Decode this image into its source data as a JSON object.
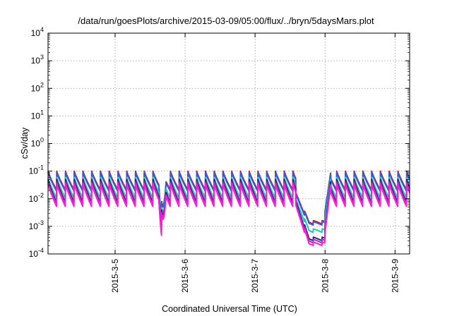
{
  "chart_data": {
    "type": "line",
    "title": "/data/run/goesPlots/archive/2015-03-09/05:00/flux/../bryn/5daysMars.plot",
    "xlabel": "Coordinated Universal Time (UTC)",
    "ylabel": "cSv/day",
    "y_scale": "log",
    "ylim": [
      0.0001,
      10000
    ],
    "xlim": [
      "2015-03-04 01:00",
      "2015-03-09 05:00"
    ],
    "grid": true,
    "y_ticks": [
      {
        "value": 0.0001,
        "mantissa": "10",
        "exponent": "-4"
      },
      {
        "value": 0.001,
        "mantissa": "10",
        "exponent": "-3"
      },
      {
        "value": 0.01,
        "mantissa": "10",
        "exponent": "-2"
      },
      {
        "value": 0.1,
        "mantissa": "10",
        "exponent": "-1"
      },
      {
        "value": 1,
        "mantissa": "10",
        "exponent": "0"
      },
      {
        "value": 10,
        "mantissa": "10",
        "exponent": "1"
      },
      {
        "value": 100,
        "mantissa": "10",
        "exponent": "2"
      },
      {
        "value": 1000,
        "mantissa": "10",
        "exponent": "3"
      },
      {
        "value": 10000,
        "mantissa": "10",
        "exponent": "4"
      }
    ],
    "x_ticks": [
      {
        "date": "2015-03-05 00:00",
        "label": "2015-3-5"
      },
      {
        "date": "2015-03-06 00:00",
        "label": "2015-3-6"
      },
      {
        "date": "2015-03-07 00:00",
        "label": "2015-3-7"
      },
      {
        "date": "2015-03-08 00:00",
        "label": "2015-3-8"
      },
      {
        "date": "2015-03-09 00:00",
        "label": "2015-3-9"
      }
    ],
    "series": [
      {
        "color": "#e0141e",
        "peak": 0.1,
        "trough": 0.02,
        "deep": 0.0012
      },
      {
        "color": "#2b5fd9",
        "peak": 0.09,
        "trough": 0.018,
        "deep": 0.0011
      },
      {
        "color": "#1fc8b0",
        "peak": 0.06,
        "trough": 0.01,
        "deep": 0.0006
      },
      {
        "color": "#3a1f6b",
        "peak": 0.05,
        "trough": 0.007,
        "deep": 0.0003
      },
      {
        "color": "#9b2fd6",
        "peak": 0.04,
        "trough": 0.006,
        "deep": 0.00025
      },
      {
        "color": "#ff1ed2",
        "peak": 0.035,
        "trough": 0.005,
        "deep": 0.0002
      }
    ],
    "pattern": {
      "period_hours": 3,
      "dip_1": {
        "start": "2015-03-05 15:00",
        "end": "2015-03-05 18:00",
        "min_factor": 0.07
      },
      "dip_2": {
        "start": "2015-03-07 14:00",
        "end": "2015-03-08 00:00"
      }
    }
  }
}
